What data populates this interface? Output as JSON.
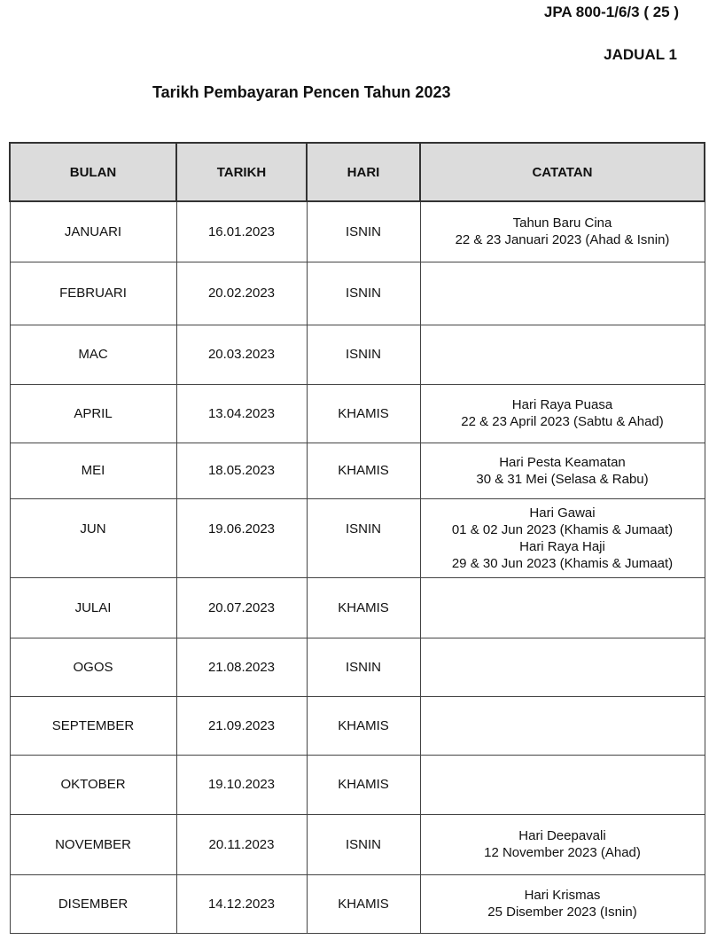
{
  "header": {
    "reference": "JPA 800-1/6/3 ( 25 )",
    "schedule": "JADUAL 1",
    "title": "Tarikh Pembayaran Pencen Tahun 2023"
  },
  "table": {
    "columns": [
      "BULAN",
      "TARIKH",
      "HARI",
      "CATATAN"
    ],
    "rows": [
      {
        "bulan": "JANUARI",
        "tarikh": "16.01.2023",
        "hari": "ISNIN",
        "catatan": [
          "Tahun Baru Cina",
          "22 & 23 Januari 2023 (Ahad & Isnin)"
        ]
      },
      {
        "bulan": "FEBRUARI",
        "tarikh": "20.02.2023",
        "hari": "ISNIN",
        "catatan": []
      },
      {
        "bulan": "MAC",
        "tarikh": "20.03.2023",
        "hari": "ISNIN",
        "catatan": []
      },
      {
        "bulan": "APRIL",
        "tarikh": "13.04.2023",
        "hari": "KHAMIS",
        "catatan": [
          "Hari Raya Puasa",
          "22 & 23 April 2023 (Sabtu & Ahad)"
        ]
      },
      {
        "bulan": "MEI",
        "tarikh": "18.05.2023",
        "hari": "KHAMIS",
        "catatan": [
          "Hari Pesta Keamatan",
          "30 & 31 Mei (Selasa & Rabu)"
        ]
      },
      {
        "bulan": "JUN",
        "tarikh": "19.06.2023",
        "hari": "ISNIN",
        "catatan": [
          "Hari Gawai",
          "01 & 02 Jun 2023 (Khamis & Jumaat)",
          "Hari Raya Haji",
          "29 & 30 Jun 2023 (Khamis & Jumaat)"
        ]
      },
      {
        "bulan": "JULAI",
        "tarikh": "20.07.2023",
        "hari": "KHAMIS",
        "catatan": []
      },
      {
        "bulan": "OGOS",
        "tarikh": "21.08.2023",
        "hari": "ISNIN",
        "catatan": []
      },
      {
        "bulan": "SEPTEMBER",
        "tarikh": "21.09.2023",
        "hari": "KHAMIS",
        "catatan": []
      },
      {
        "bulan": "OKTOBER",
        "tarikh": "19.10.2023",
        "hari": "KHAMIS",
        "catatan": []
      },
      {
        "bulan": "NOVEMBER",
        "tarikh": "20.11.2023",
        "hari": "ISNIN",
        "catatan": [
          "Hari Deepavali",
          "12 November 2023 (Ahad)"
        ]
      },
      {
        "bulan": "DISEMBER",
        "tarikh": "14.12.2023",
        "hari": "KHAMIS",
        "catatan": [
          "Hari Krismas",
          "25 Disember 2023 (Isnin)"
        ]
      }
    ]
  }
}
